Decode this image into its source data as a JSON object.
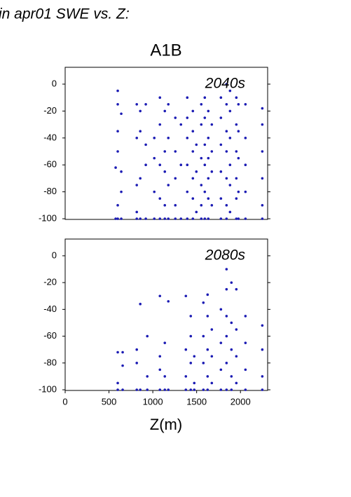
{
  "header": "in apr01 SWE vs. Z:",
  "chart_data": [
    {
      "type": "scatter",
      "title": "A1B",
      "annotation": "2040s",
      "color": "#1c1cb4",
      "annotation_color": "#2a2ac8",
      "xlim": [
        0,
        2310
      ],
      "ylim": [
        -100.5,
        12.5
      ],
      "yticks": [
        0,
        -20,
        -40,
        -60,
        -80,
        -100
      ],
      "x": [
        576,
        576,
        600,
        600,
        600,
        600,
        600,
        600,
        640,
        640,
        640,
        640,
        817,
        817,
        817,
        817,
        817,
        857,
        857,
        857,
        857,
        920,
        920,
        920,
        920,
        1017,
        1017,
        1017,
        1017,
        1081,
        1081,
        1081,
        1081,
        1081,
        1137,
        1137,
        1137,
        1137,
        1137,
        1177,
        1177,
        1177,
        1177,
        1257,
        1257,
        1257,
        1257,
        1257,
        1321,
        1321,
        1321,
        1393,
        1393,
        1393,
        1393,
        1393,
        1393,
        1457,
        1457,
        1457,
        1457,
        1457,
        1457,
        1497,
        1497,
        1497,
        1553,
        1553,
        1553,
        1553,
        1553,
        1553,
        1593,
        1593,
        1593,
        1593,
        1593,
        1593,
        1633,
        1633,
        1633,
        1633,
        1633,
        1633,
        1673,
        1673,
        1673,
        1673,
        1777,
        1777,
        1777,
        1777,
        1777,
        1777,
        1841,
        1841,
        1841,
        1841,
        1841,
        1841,
        1841,
        1881,
        1881,
        1881,
        1881,
        1881,
        1881,
        1953,
        1953,
        1953,
        1953,
        1953,
        1953,
        1977,
        1977,
        1977,
        1977,
        1977,
        2057,
        2057,
        2057,
        2057,
        2057,
        2249,
        2249,
        2249,
        2249,
        2249,
        2249
      ],
      "y": [
        -62,
        -100,
        -5,
        -15,
        -35,
        -50,
        -90,
        -100,
        -22,
        -65,
        -80,
        -100,
        -15,
        -40,
        -75,
        -95,
        -100,
        -20,
        -35,
        -70,
        -100,
        -15,
        -45,
        -60,
        -100,
        -40,
        -55,
        -80,
        -100,
        -10,
        -30,
        -60,
        -85,
        -100,
        -20,
        -50,
        -65,
        -90,
        -100,
        -15,
        -40,
        -75,
        -100,
        -25,
        -50,
        -70,
        -90,
        -100,
        -30,
        -60,
        -100,
        -10,
        -25,
        -40,
        -60,
        -80,
        -100,
        -20,
        -35,
        -50,
        -70,
        -85,
        -100,
        -45,
        -65,
        -95,
        -15,
        -30,
        -55,
        -75,
        -90,
        -100,
        -10,
        -25,
        -45,
        -60,
        -80,
        -100,
        -20,
        -40,
        -55,
        -70,
        -85,
        -100,
        -30,
        -50,
        -65,
        -90,
        -10,
        -25,
        -45,
        -65,
        -85,
        -100,
        0,
        -15,
        -35,
        -50,
        -70,
        -90,
        -100,
        -5,
        -20,
        -40,
        -60,
        -75,
        -95,
        -10,
        -30,
        -50,
        -70,
        -85,
        -100,
        -15,
        -35,
        -55,
        -80,
        -100,
        -15,
        -40,
        -60,
        -80,
        -100,
        -18,
        -30,
        -50,
        -70,
        -90,
        -100
      ]
    },
    {
      "type": "scatter",
      "annotation": "2080s",
      "xlabel": "Z(m)",
      "color": "#1c1cb4",
      "annotation_color": "#2a2ac8",
      "xlim": [
        0,
        2310
      ],
      "ylim": [
        -100.5,
        12.5
      ],
      "yticks": [
        0,
        -20,
        -40,
        -60,
        -80,
        -100
      ],
      "xticks": [
        0,
        500,
        1000,
        1500,
        2000
      ],
      "x": [
        600,
        600,
        600,
        656,
        656,
        656,
        817,
        817,
        817,
        857,
        857,
        937,
        937,
        937,
        1081,
        1081,
        1081,
        1081,
        1137,
        1137,
        1137,
        1177,
        1177,
        1377,
        1377,
        1377,
        1377,
        1433,
        1433,
        1433,
        1433,
        1473,
        1473,
        1473,
        1577,
        1577,
        1577,
        1577,
        1625,
        1625,
        1625,
        1625,
        1625,
        1673,
        1673,
        1673,
        1777,
        1777,
        1777,
        1777,
        1841,
        1841,
        1841,
        1841,
        1841,
        1841,
        1897,
        1897,
        1897,
        1897,
        1897,
        1953,
        1953,
        1953,
        1953,
        2057,
        2057,
        2057,
        2057,
        2249,
        2249,
        2249,
        2249
      ],
      "y": [
        -72,
        -95,
        -100,
        -72,
        -82,
        -100,
        -70,
        -80,
        -100,
        -36,
        -100,
        -60,
        -90,
        -100,
        -30,
        -75,
        -85,
        -100,
        -65,
        -90,
        -100,
        -34,
        -100,
        -30,
        -70,
        -90,
        -100,
        -45,
        -60,
        -80,
        -100,
        -75,
        -95,
        -100,
        -35,
        -60,
        -80,
        -100,
        -29,
        -45,
        -70,
        -90,
        -100,
        -55,
        -75,
        -95,
        -40,
        -65,
        -85,
        -100,
        -10,
        -25,
        -45,
        -60,
        -80,
        -100,
        -20,
        -50,
        -70,
        -90,
        -100,
        -25,
        -55,
        -75,
        -95,
        -45,
        -65,
        -85,
        -100,
        -52,
        -70,
        -90,
        -100
      ]
    }
  ]
}
